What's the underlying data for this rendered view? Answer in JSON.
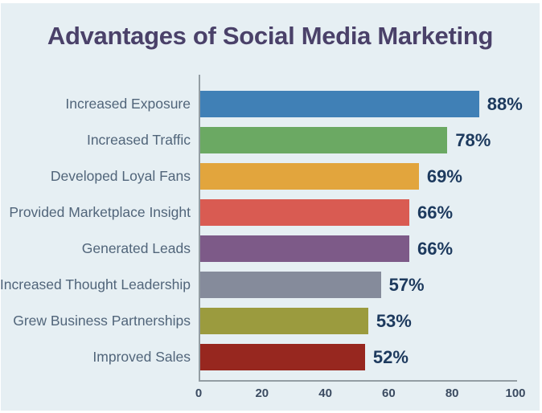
{
  "colors": {
    "background": "#e6eff3",
    "title_text": "#4a4169",
    "category_text": "#51657a",
    "value_text": "#1d3a5e",
    "tick_text": "#3b4b61",
    "axis": "#939da3"
  },
  "chart_data": {
    "type": "bar",
    "orientation": "horizontal",
    "title": "Advantages of Social Media Marketing",
    "categories": [
      "Increased Exposure",
      "Increased Traffic",
      "Developed Loyal Fans",
      "Provided Marketplace Insight",
      "Generated Leads",
      "Increased Thought Leadership",
      "Grew Business Partnerships",
      "Improved Sales"
    ],
    "values": [
      88,
      78,
      69,
      66,
      66,
      57,
      53,
      52
    ],
    "value_labels": [
      "88%",
      "78%",
      "69%",
      "66%",
      "66%",
      "57%",
      "53%",
      "52%"
    ],
    "bar_colors": [
      "#4080b6",
      "#6ba963",
      "#e2a53d",
      "#d95b52",
      "#7d5a88",
      "#858b9b",
      "#9b9b3e",
      "#97271f"
    ],
    "xlabel": "",
    "ylabel": "",
    "xlim": [
      0,
      100
    ],
    "x_ticks": [
      0,
      20,
      40,
      60,
      80,
      100
    ],
    "x_tick_labels": [
      "0",
      "20",
      "40",
      "60",
      "80",
      "100"
    ],
    "legend": "none",
    "grid": false
  }
}
